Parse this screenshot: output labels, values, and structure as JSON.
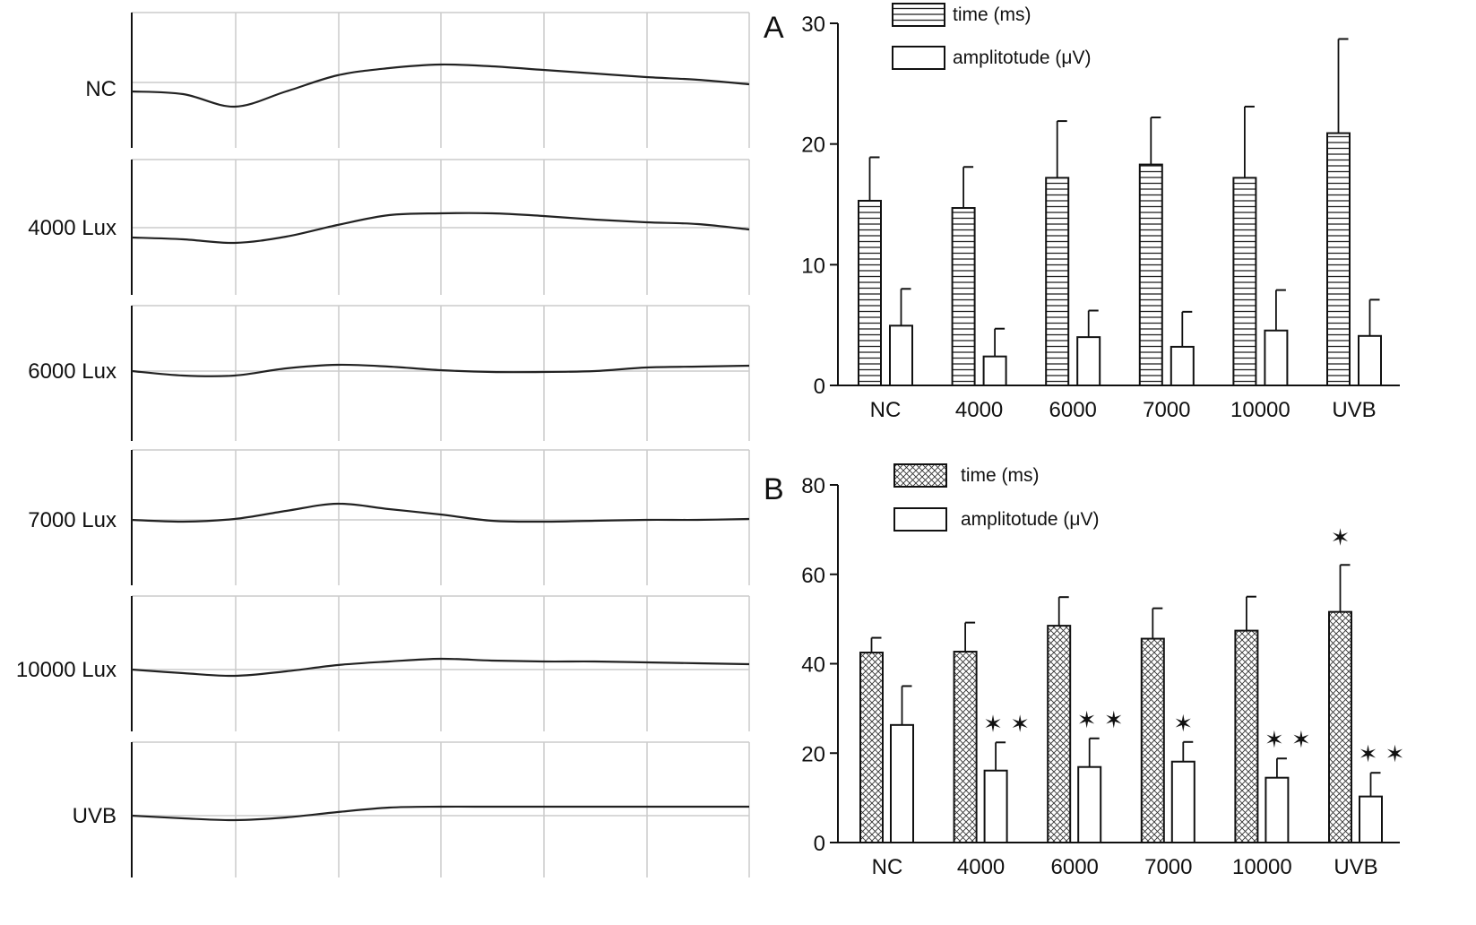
{
  "chart_data": [
    {
      "type": "line",
      "description_labels": [
        "NC",
        "4000 Lux",
        "6000 Lux",
        "7000 Lux",
        "10000 Lux",
        "UVB"
      ],
      "grid": true,
      "traces": [
        {
          "label": "NC",
          "values": [
            -10,
            -13,
            -27,
            -10,
            8,
            16,
            20,
            18,
            14,
            10,
            6,
            3,
            -2
          ]
        },
        {
          "label": "4000 Lux",
          "values": [
            -11,
            -13,
            -17,
            -10,
            3,
            14,
            16,
            16,
            13,
            9,
            6,
            4,
            -2
          ]
        },
        {
          "label": "6000 Lux",
          "values": [
            0,
            -5,
            -5,
            3,
            7,
            5,
            1,
            -1,
            -1,
            0,
            4,
            5,
            6
          ]
        },
        {
          "label": "7000 Lux",
          "values": [
            0,
            -2,
            1,
            10,
            18,
            12,
            6,
            -1,
            -2,
            -1,
            0,
            0,
            1
          ]
        },
        {
          "label": "10000 Lux",
          "values": [
            0,
            -4,
            -7,
            -2,
            5,
            9,
            12,
            10,
            9,
            9,
            8,
            7,
            6
          ]
        },
        {
          "label": "UVB",
          "values": [
            0,
            -3,
            -5,
            -2,
            4,
            9,
            10,
            10,
            10,
            10,
            10,
            10,
            10
          ]
        }
      ]
    },
    {
      "type": "bar",
      "panel_label": "A",
      "categories": [
        "NC",
        "4000",
        "6000",
        "7000",
        "10000",
        "UVB"
      ],
      "ylim": [
        0,
        30
      ],
      "yticks": [
        "0",
        "10",
        "20",
        "30"
      ],
      "legend": "top-left",
      "series": [
        {
          "name": "time (ms)",
          "pattern": "horizontal-lines",
          "values": [
            15.3,
            14.7,
            17.2,
            18.3,
            17.2,
            20.9
          ],
          "error_upper": [
            18.9,
            18.1,
            21.9,
            22.2,
            23.1,
            28.7
          ]
        },
        {
          "name": "amplitotude (μV)",
          "pattern": "none",
          "values": [
            4.95,
            2.4,
            4.0,
            3.2,
            4.55,
            4.1
          ],
          "error_upper": [
            8.0,
            4.7,
            6.2,
            6.1,
            7.9,
            7.1
          ]
        }
      ]
    },
    {
      "type": "bar",
      "panel_label": "B",
      "categories": [
        "NC",
        "4000",
        "6000",
        "7000",
        "10000",
        "UVB"
      ],
      "ylim": [
        0,
        80
      ],
      "yticks": [
        "0",
        "20",
        "40",
        "60",
        "80"
      ],
      "legend": "top-left",
      "series": [
        {
          "name": "time (ms)",
          "pattern": "crosshatch",
          "values": [
            42.5,
            42.7,
            48.5,
            45.6,
            47.4,
            51.6
          ],
          "error_upper": [
            45.8,
            49.2,
            54.9,
            52.4,
            55.0,
            62.1
          ],
          "significance": [
            "",
            "",
            "",
            "",
            "",
            "✶"
          ]
        },
        {
          "name": "amplitotude (μV)",
          "pattern": "none",
          "values": [
            26.3,
            16.1,
            16.9,
            18.1,
            14.5,
            10.3
          ],
          "error_upper": [
            35.0,
            22.4,
            23.3,
            22.5,
            18.8,
            15.6
          ],
          "significance": [
            "",
            "✶ ✶",
            "✶ ✶",
            "✶",
            "✶ ✶",
            "✶ ✶"
          ]
        }
      ]
    }
  ],
  "colors": {
    "ink": "#111111",
    "grid": "#cccccc"
  }
}
